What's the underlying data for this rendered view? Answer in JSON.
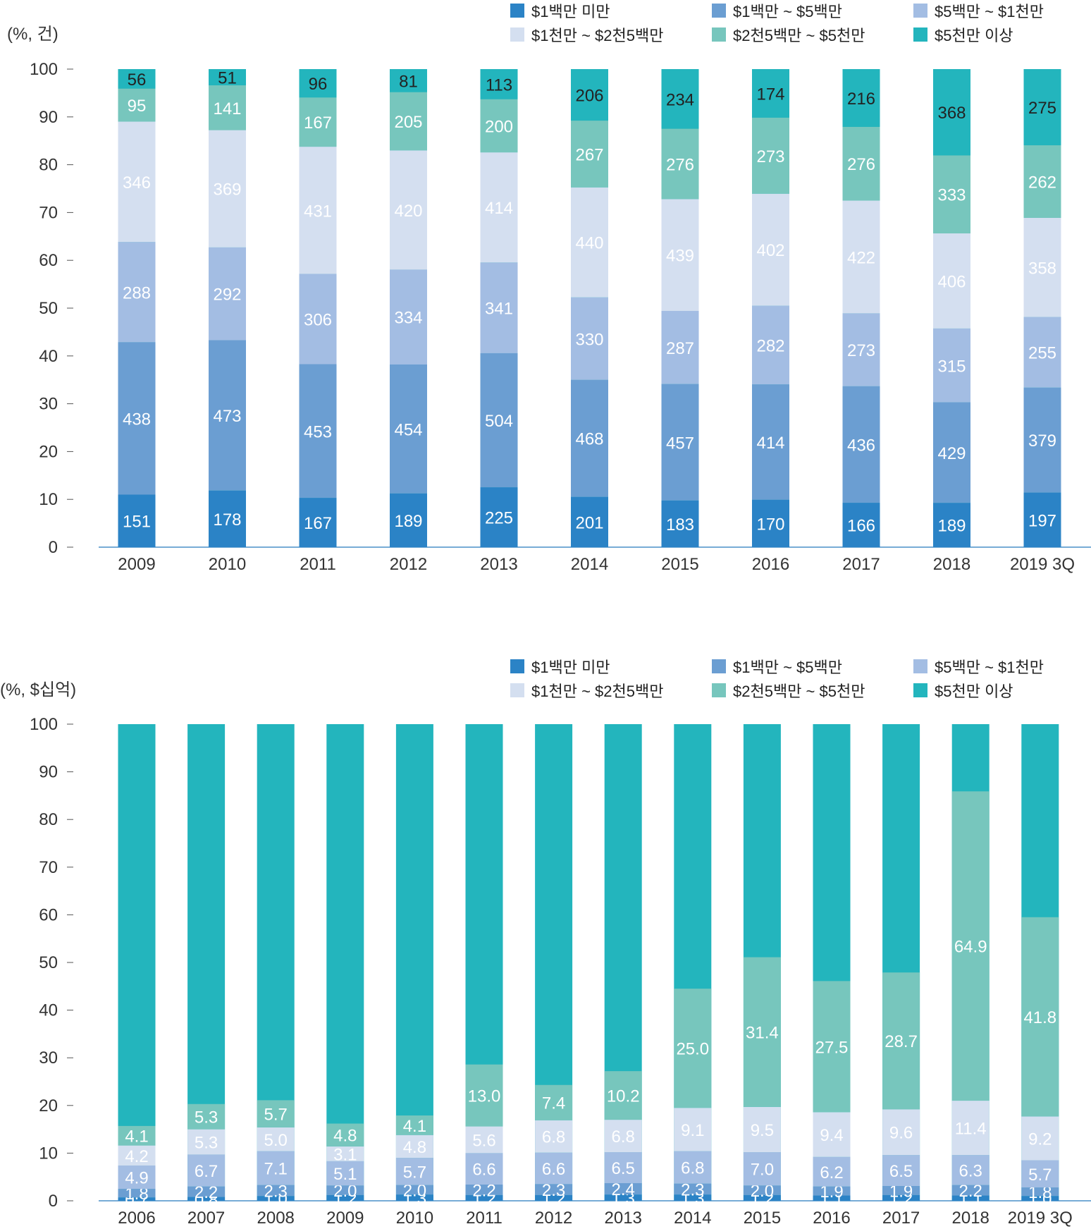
{
  "legend": {
    "series_names": [
      "$1백만 미만",
      "$1백만 ~ $5백만",
      "$5백만 ~ $1천만",
      "$1천만 ~ $2천5백만",
      "$2천5백만 ~ $5천만",
      "$5천만 이상"
    ]
  },
  "colors": {
    "series": [
      "#2b83c6",
      "#6b9ed2",
      "#a3bde3",
      "#d4dff0",
      "#77c6bd",
      "#23b5bd"
    ],
    "label_text_dark": [
      "#ffffff",
      "#ffffff",
      "#ffffff",
      "#ffffff",
      "#ffffff",
      "#222222"
    ],
    "axis": "#555555",
    "baseline": "#4a90c8"
  },
  "chart_data": [
    {
      "type": "bar",
      "stacked": true,
      "normalized": true,
      "ylabel": "(%, 건)",
      "ylim": [
        0,
        100
      ],
      "yticks": [
        0,
        10,
        20,
        30,
        40,
        50,
        60,
        70,
        80,
        90,
        100
      ],
      "categories": [
        "2009",
        "2010",
        "2011",
        "2012",
        "2013",
        "2014",
        "2015",
        "2016",
        "2017",
        "2018",
        "2019 3Q"
      ],
      "legend_position": "top-right",
      "series": [
        {
          "name": "$1백만 미만",
          "values": [
            151,
            178,
            167,
            189,
            225,
            201,
            183,
            170,
            166,
            189,
            197
          ]
        },
        {
          "name": "$1백만 ~ $5백만",
          "values": [
            438,
            473,
            453,
            454,
            504,
            468,
            457,
            414,
            436,
            429,
            379
          ]
        },
        {
          "name": "$5백만 ~ $1천만",
          "values": [
            288,
            292,
            306,
            334,
            341,
            330,
            287,
            282,
            273,
            315,
            255
          ]
        },
        {
          "name": "$1천만 ~ $2천5백만",
          "values": [
            346,
            369,
            431,
            420,
            414,
            440,
            439,
            402,
            422,
            406,
            358
          ]
        },
        {
          "name": "$2천5백만 ~ $5천만",
          "values": [
            95,
            141,
            167,
            205,
            200,
            267,
            276,
            273,
            276,
            333,
            262
          ]
        },
        {
          "name": "$5천만 이상",
          "values": [
            56,
            51,
            96,
            81,
            113,
            206,
            234,
            174,
            216,
            368,
            275
          ]
        }
      ]
    },
    {
      "type": "bar",
      "stacked": true,
      "normalized": true,
      "ylabel": "(%, $십억)",
      "ylim": [
        0,
        100
      ],
      "yticks": [
        0,
        10,
        20,
        30,
        40,
        50,
        60,
        70,
        80,
        90,
        100
      ],
      "categories": [
        "2006",
        "2007",
        "2008",
        "2009",
        "2010",
        "2011",
        "2012",
        "2013",
        "2014",
        "2015",
        "2016",
        "2017",
        "2018",
        "2019 3Q"
      ],
      "legend_position": "top-right",
      "series": [
        {
          "name": "$1백만 미만",
          "values": [
            "0.7",
            "0.8",
            "1.0",
            "1.2",
            "1.3",
            "1.2",
            "1.2",
            "1.3",
            "1.3",
            "1.2",
            "1.1",
            "1.2",
            "1.1",
            "1.0"
          ]
        },
        {
          "name": "$1백만 ~ $5백만",
          "values": [
            "1.8",
            "2.2",
            "2.3",
            "2.0",
            "2.0",
            "2.2",
            "2.3",
            "2.4",
            "2.3",
            "2.0",
            "1.9",
            "1.9",
            "2.2",
            "1.8"
          ]
        },
        {
          "name": "$5백만 ~ $1천만",
          "values": [
            "4.9",
            "6.7",
            "7.1",
            "5.1",
            "5.7",
            "6.6",
            "6.6",
            "6.5",
            "6.8",
            "7.0",
            "6.2",
            "6.5",
            "6.3",
            "5.7"
          ]
        },
        {
          "name": "$1천만 ~ $2천5백만",
          "values": [
            "4.2",
            "5.3",
            "5.0",
            "3.1",
            "4.8",
            "5.6",
            "6.8",
            "6.8",
            "9.1",
            "9.5",
            "9.4",
            "9.6",
            "11.4",
            "9.2"
          ]
        },
        {
          "name": "$2천5백만 ~ $5천만",
          "values": [
            "4.1",
            "5.3",
            "5.7",
            "4.8",
            "4.1",
            "13.0",
            "7.4",
            "10.2",
            "25.0",
            "31.4",
            "27.5",
            "28.7",
            "64.9",
            "41.8"
          ]
        }
      ]
    }
  ]
}
